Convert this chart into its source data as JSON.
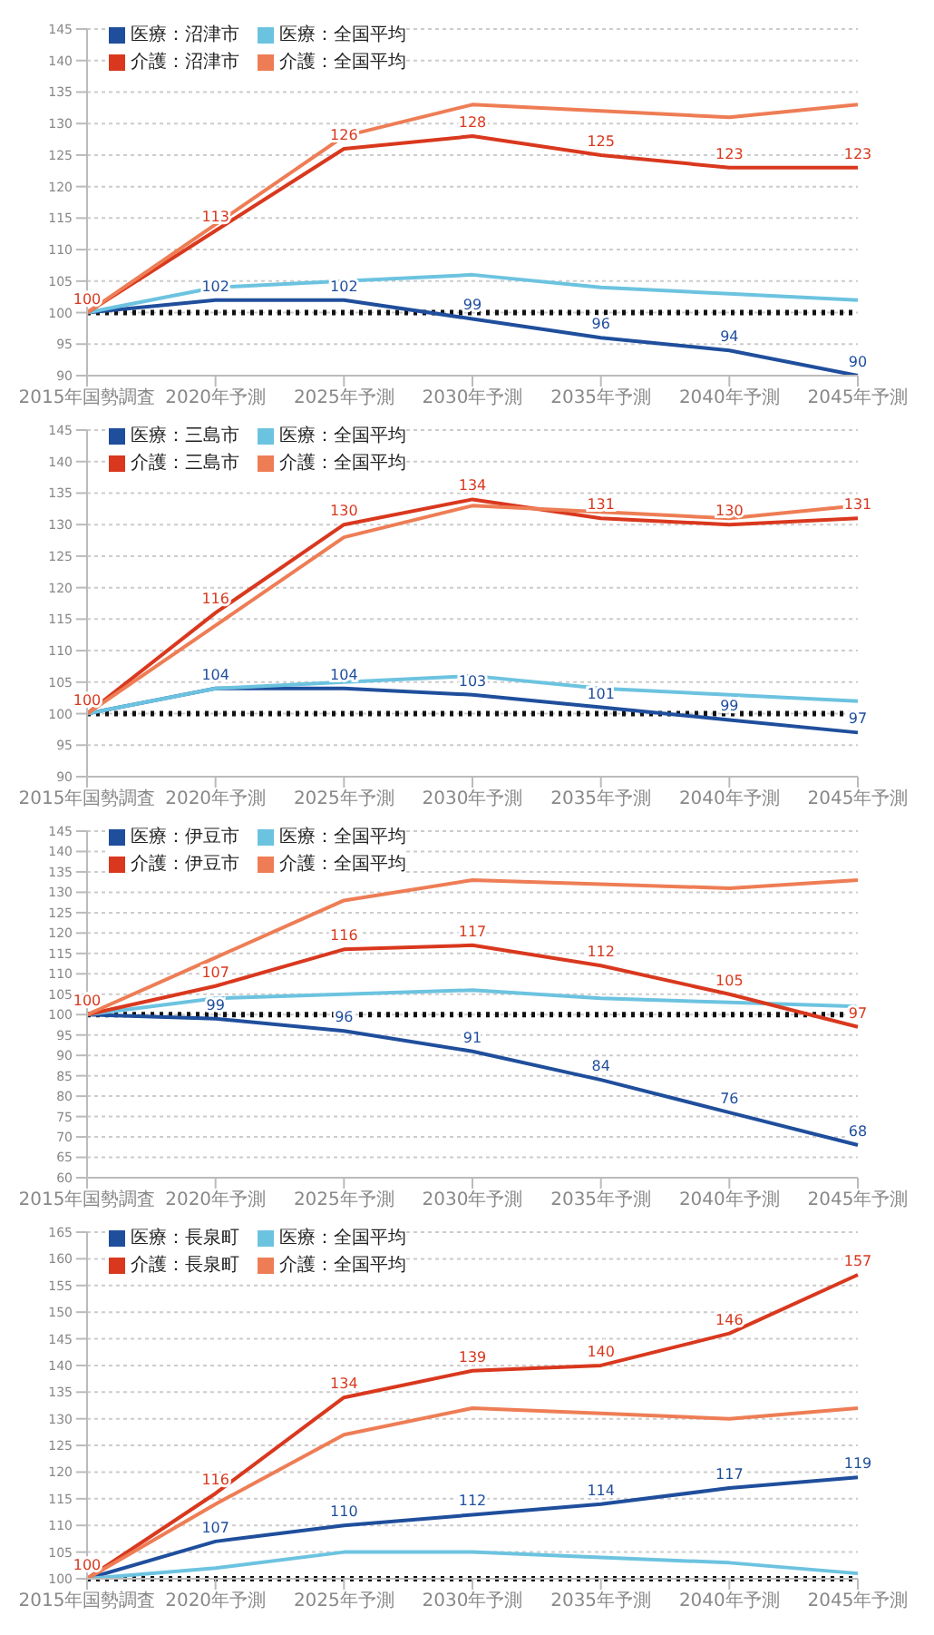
{
  "chart_data": [
    {
      "type": "line",
      "categories": [
        "2015年国勢調査",
        "2020年予測",
        "2025年予測",
        "2030年予測",
        "2035年予測",
        "2040年予測",
        "2045年予測"
      ],
      "ylim": [
        90,
        145
      ],
      "yticks": [
        90,
        95,
        100,
        105,
        110,
        115,
        120,
        125,
        130,
        135,
        140,
        145
      ],
      "grid": "y",
      "legend": "top left",
      "marker": "none",
      "line_style": "solid",
      "ref_lines": [
        {
          "axis": "y",
          "value": 100,
          "color": "#111111",
          "line_style": "dotted"
        }
      ],
      "series": [
        {
          "name": "医療：沼津市",
          "color": "#1f4e9c",
          "values": [
            100,
            102,
            102,
            99,
            96,
            94,
            90
          ],
          "value_labels": [
            null,
            "102",
            "102",
            "99",
            "96",
            "94",
            "90"
          ]
        },
        {
          "name": "医療：全国平均",
          "color": "#6cc3e0",
          "values": [
            100,
            104,
            105,
            106,
            104,
            103,
            102
          ]
        },
        {
          "name": "介護：沼津市",
          "color": "#d9381e",
          "values": [
            100,
            113,
            126,
            128,
            125,
            123,
            123
          ],
          "value_labels": [
            "100",
            "113",
            "126",
            "128",
            "125",
            "123",
            "123"
          ]
        },
        {
          "name": "介護：全国平均",
          "color": "#ee7d55",
          "values": [
            100,
            114,
            128,
            133,
            132,
            131,
            133
          ]
        }
      ]
    },
    {
      "type": "line",
      "categories": [
        "2015年国勢調査",
        "2020年予測",
        "2025年予測",
        "2030年予測",
        "2035年予測",
        "2040年予測",
        "2045年予測"
      ],
      "ylim": [
        90,
        145
      ],
      "yticks": [
        90,
        95,
        100,
        105,
        110,
        115,
        120,
        125,
        130,
        135,
        140,
        145
      ],
      "grid": "y",
      "legend": "top left",
      "marker": "none",
      "line_style": "solid",
      "ref_lines": [
        {
          "axis": "y",
          "value": 100,
          "color": "#111111",
          "line_style": "dotted"
        }
      ],
      "series": [
        {
          "name": "医療：三島市",
          "color": "#1f4e9c",
          "values": [
            100,
            104,
            104,
            103,
            101,
            99,
            97
          ],
          "value_labels": [
            null,
            "104",
            "104",
            "103",
            "101",
            "99",
            "97"
          ]
        },
        {
          "name": "医療：全国平均",
          "color": "#6cc3e0",
          "values": [
            100,
            104,
            105,
            106,
            104,
            103,
            102
          ]
        },
        {
          "name": "介護：三島市",
          "color": "#d9381e",
          "values": [
            100,
            116,
            130,
            134,
            131,
            130,
            131
          ],
          "value_labels": [
            "100",
            "116",
            "130",
            "134",
            "131",
            "130",
            "131"
          ]
        },
        {
          "name": "介護：全国平均",
          "color": "#ee7d55",
          "values": [
            100,
            114,
            128,
            133,
            132,
            131,
            133
          ]
        }
      ]
    },
    {
      "type": "line",
      "categories": [
        "2015年国勢調査",
        "2020年予測",
        "2025年予測",
        "2030年予測",
        "2035年予測",
        "2040年予測",
        "2045年予測"
      ],
      "ylim": [
        60,
        145
      ],
      "yticks": [
        60,
        65,
        70,
        75,
        80,
        85,
        90,
        95,
        100,
        105,
        110,
        115,
        120,
        125,
        130,
        135,
        140,
        145
      ],
      "grid": "y",
      "legend": "top left",
      "marker": "none",
      "line_style": "solid",
      "ref_lines": [
        {
          "axis": "y",
          "value": 100,
          "color": "#111111",
          "line_style": "dotted"
        }
      ],
      "series": [
        {
          "name": "医療：伊豆市",
          "color": "#1f4e9c",
          "values": [
            100,
            99,
            96,
            91,
            84,
            76,
            68
          ],
          "value_labels": [
            null,
            "99",
            "96",
            "91",
            "84",
            "76",
            "68"
          ]
        },
        {
          "name": "医療：全国平均",
          "color": "#6cc3e0",
          "values": [
            100,
            104,
            105,
            106,
            104,
            103,
            102
          ]
        },
        {
          "name": "介護：伊豆市",
          "color": "#d9381e",
          "values": [
            100,
            107,
            116,
            117,
            112,
            105,
            97
          ],
          "value_labels": [
            "100",
            "107",
            "116",
            "117",
            "112",
            "105",
            "97"
          ]
        },
        {
          "name": "介護：全国平均",
          "color": "#ee7d55",
          "values": [
            100,
            114,
            128,
            133,
            132,
            131,
            133
          ]
        }
      ]
    },
    {
      "type": "line",
      "categories": [
        "2015年国勢調査",
        "2020年予測",
        "2025年予測",
        "2030年予測",
        "2035年予測",
        "2040年予測",
        "2045年予測"
      ],
      "ylim": [
        100,
        165
      ],
      "yticks": [
        100,
        105,
        110,
        115,
        120,
        125,
        130,
        135,
        140,
        145,
        150,
        155,
        160,
        165
      ],
      "grid": "y",
      "legend": "top left",
      "marker": "none",
      "line_style": "solid",
      "ref_lines": [
        {
          "axis": "y",
          "value": 100,
          "color": "#111111",
          "line_style": "dotted"
        }
      ],
      "series": [
        {
          "name": "医療：長泉町",
          "color": "#1f4e9c",
          "values": [
            100,
            107,
            110,
            112,
            114,
            117,
            119
          ],
          "value_labels": [
            null,
            "107",
            "110",
            "112",
            "114",
            "117",
            "119"
          ]
        },
        {
          "name": "医療：全国平均",
          "color": "#6cc3e0",
          "values": [
            100,
            102,
            105,
            105,
            104,
            103,
            101
          ]
        },
        {
          "name": "介護：長泉町",
          "color": "#d9381e",
          "values": [
            100,
            116,
            134,
            139,
            140,
            146,
            157
          ],
          "value_labels": [
            "100",
            "116",
            "134",
            "139",
            "140",
            "146",
            "157"
          ]
        },
        {
          "name": "介護：全国平均",
          "color": "#ee7d55",
          "values": [
            100,
            114,
            127,
            132,
            131,
            130,
            132
          ]
        }
      ]
    }
  ]
}
